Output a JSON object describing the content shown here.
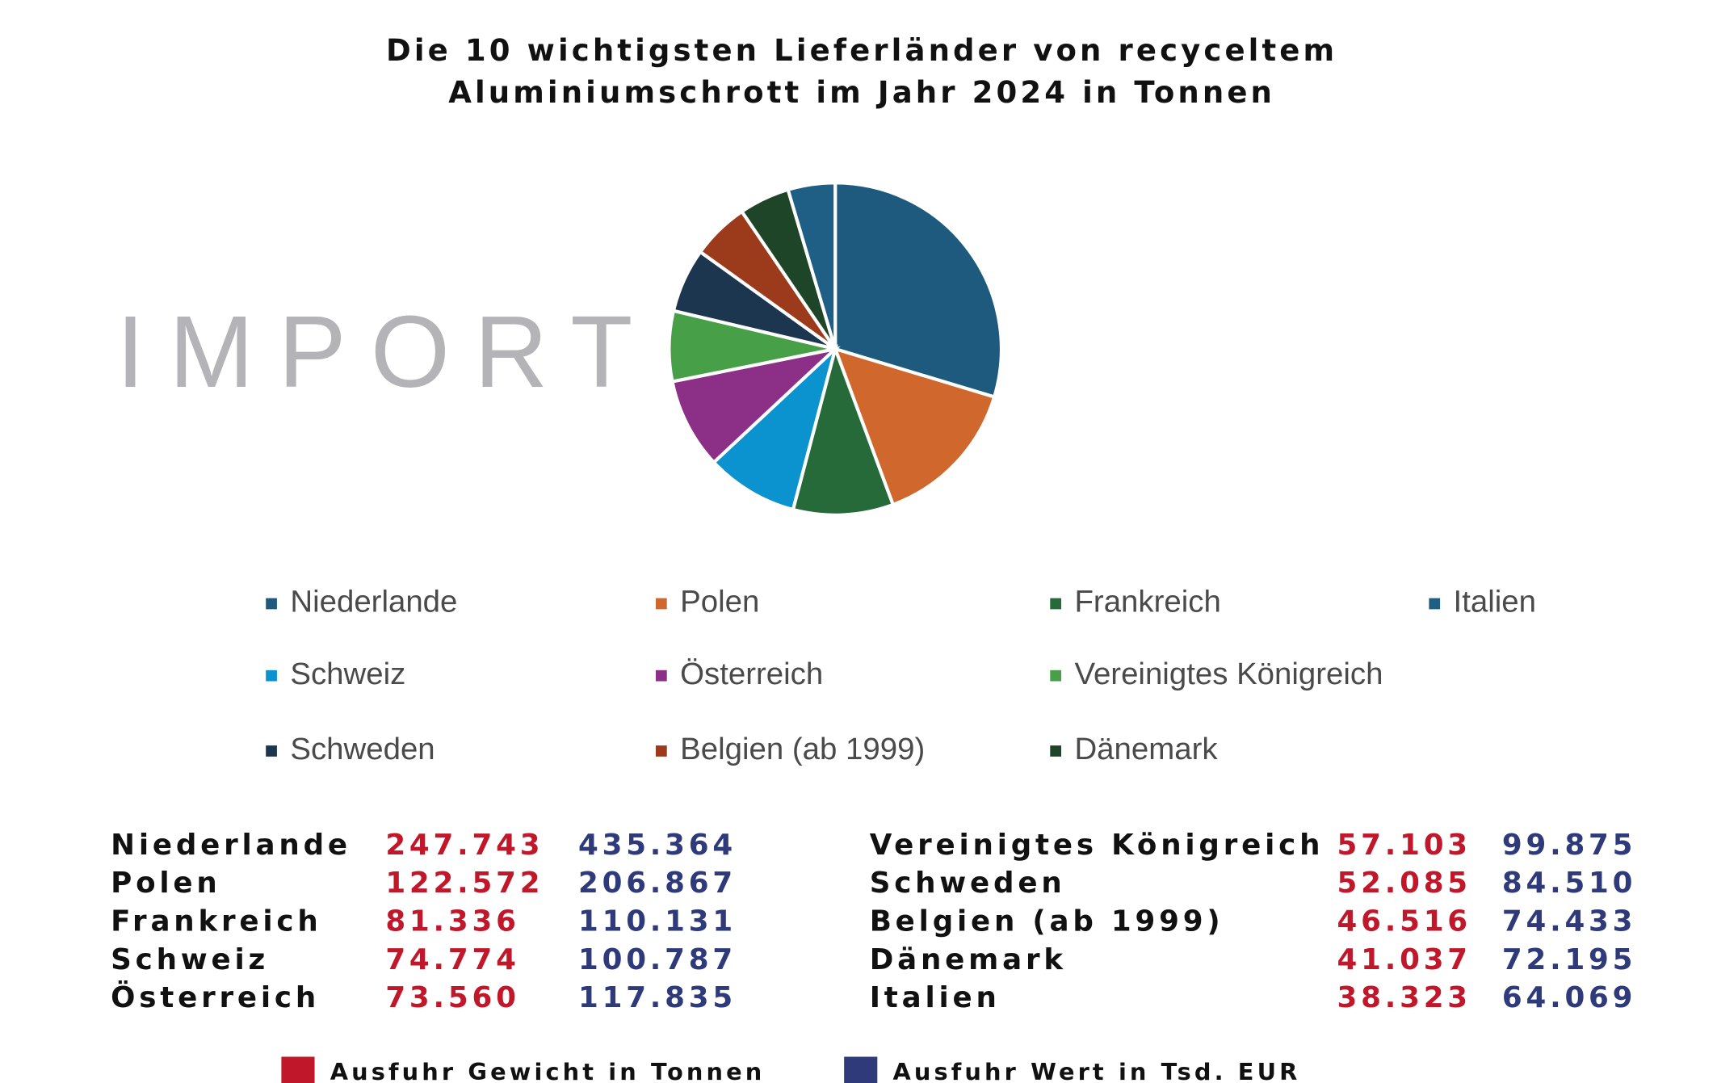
{
  "header": {
    "title_lines": [
      "Die 10 wichtigsten Lieferländer von recyceltem",
      "Aluminiumschrott im Jahr 2024 in Tonnen"
    ]
  },
  "side_label": "IMPORT",
  "chart_data": {
    "type": "pie",
    "categories": [
      "Niederlande",
      "Polen",
      "Frankreich",
      "Schweiz",
      "Österreich",
      "Vereinigtes Königreich",
      "Schweden",
      "Belgien (ab 1999)",
      "Dänemark",
      "Italien"
    ],
    "values": [
      247743,
      122572,
      81336,
      74774,
      73560,
      57103,
      52085,
      46516,
      41037,
      38323
    ],
    "colors": [
      "#1d5a7d",
      "#d0672c",
      "#276a39",
      "#0b93cf",
      "#8b2f87",
      "#47a047",
      "#1c3650",
      "#9c3b1c",
      "#1e4527",
      "#1f5f85"
    ]
  },
  "table": {
    "left": [
      [
        "Niederlande",
        "247.743",
        "435.364"
      ],
      [
        "Polen",
        "122.572",
        "206.867"
      ],
      [
        "Frankreich",
        "81.336",
        "110.131"
      ],
      [
        "Schweiz",
        "74.774",
        "100.787"
      ],
      [
        "Österreich",
        "73.560",
        "117.835"
      ]
    ],
    "right": [
      [
        "Vereinigtes Königreich",
        "57.103",
        "99.875"
      ],
      [
        "Schweden",
        "52.085",
        "84.510"
      ],
      [
        "Belgien (ab 1999)",
        "46.516",
        "74.433"
      ],
      [
        "Dänemark",
        "41.037",
        "72.195"
      ],
      [
        "Italien",
        "38.323",
        "64.069"
      ]
    ]
  },
  "table_legend": [
    {
      "label": "Ausfuhr Gewicht in Tonnen",
      "color": "#c0182a"
    },
    {
      "label": "Ausfuhr Wert in Tsd. EUR",
      "color": "#2e3a7a"
    }
  ]
}
